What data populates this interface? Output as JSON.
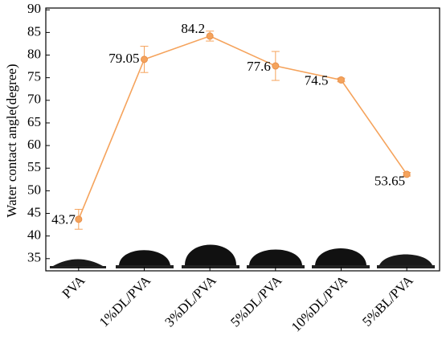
{
  "chart_data": {
    "type": "line",
    "y_label": "Water contact angle(degree)",
    "categories": [
      "PVA",
      "1%DL/PVA",
      "3%DL/PVA",
      "5%DL/PVA",
      "10%DL/PVA",
      "5%BL/PVA"
    ],
    "series": [
      {
        "color": "#f5a35c",
        "values": [
          43.7,
          79.05,
          84.2,
          77.6,
          74.5,
          53.65
        ],
        "errors": [
          2.2,
          2.9,
          1.1,
          3.2,
          0.4,
          0.4
        ]
      }
    ],
    "ylim": [
      32.3,
      90.4
    ],
    "yticks": [
      35,
      40,
      45,
      50,
      55,
      60,
      65,
      70,
      75,
      80,
      85,
      90
    ]
  }
}
